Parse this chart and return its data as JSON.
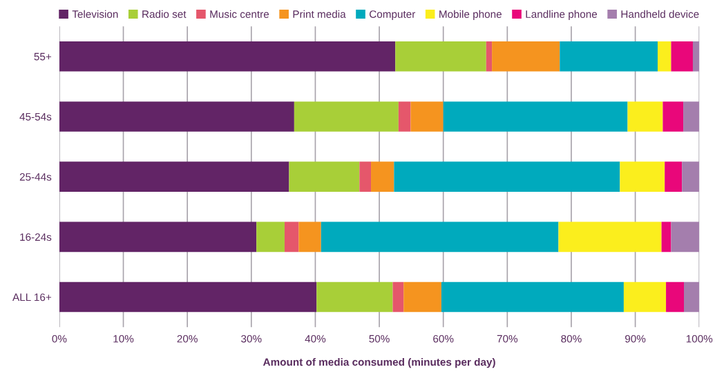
{
  "chart_data": {
    "type": "bar",
    "orientation": "horizontal",
    "stacked": true,
    "xlabel": "Amount of media consumed (minutes per day)",
    "categories": [
      "55+",
      "45-54s",
      "25-44s",
      "16-24s",
      "ALL 16+"
    ],
    "series": [
      {
        "name": "Television",
        "color": "#622466",
        "values": [
          52.5,
          36.7,
          35.9,
          30.8,
          40.2
        ]
      },
      {
        "name": "Radio set",
        "color": "#a8cf38",
        "values": [
          14.2,
          16.3,
          11.0,
          4.4,
          11.9
        ]
      },
      {
        "name": "Music centre",
        "color": "#e5576b",
        "values": [
          0.9,
          1.9,
          1.8,
          2.2,
          1.7
        ]
      },
      {
        "name": "Print media",
        "color": "#f5941f",
        "values": [
          10.6,
          5.1,
          3.6,
          3.5,
          5.9
        ]
      },
      {
        "name": "Computer",
        "color": "#00aabd",
        "values": [
          15.3,
          28.8,
          35.3,
          37.1,
          28.5
        ]
      },
      {
        "name": "Mobile phone",
        "color": "#fbee1d",
        "values": [
          2.1,
          5.5,
          7.0,
          16.1,
          6.6
        ]
      },
      {
        "name": "Landline phone",
        "color": "#e9077a",
        "values": [
          3.4,
          3.2,
          2.7,
          1.5,
          2.8
        ]
      },
      {
        "name": "Handheld device",
        "color": "#a47ead",
        "values": [
          1.0,
          2.5,
          2.7,
          4.4,
          2.4
        ]
      }
    ],
    "xlim": [
      0,
      100
    ],
    "xticks": [
      {
        "value": 0,
        "label": "0%"
      },
      {
        "value": 10,
        "label": "10%"
      },
      {
        "value": 20,
        "label": "20%"
      },
      {
        "value": 30,
        "label": "30%"
      },
      {
        "value": 40,
        "label": "40%"
      },
      {
        "value": 50,
        "label": "50%"
      },
      {
        "value": 60,
        "label": "60%"
      },
      {
        "value": 70,
        "label": "70%"
      },
      {
        "value": 80,
        "label": "80%"
      },
      {
        "value": 90,
        "label": "90%"
      },
      {
        "value": 100,
        "label": "100%"
      }
    ],
    "grid": "x",
    "legend": "top"
  }
}
